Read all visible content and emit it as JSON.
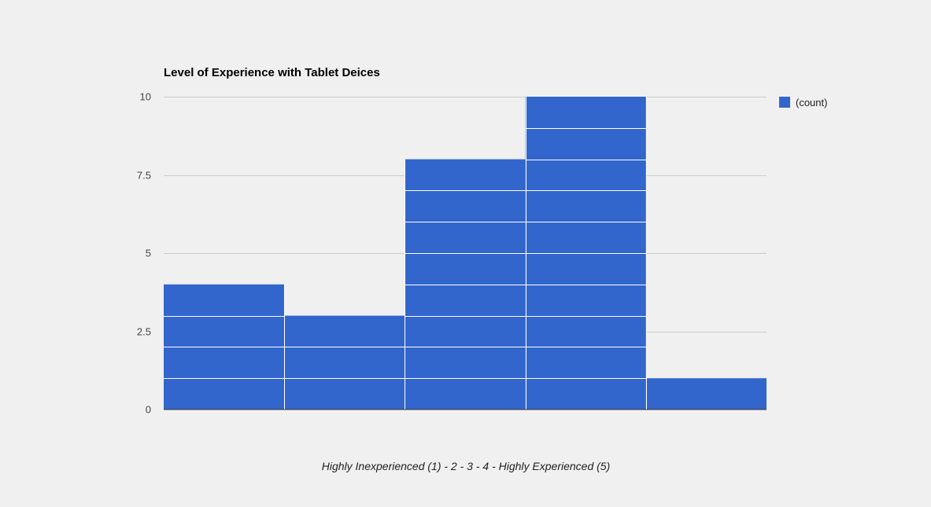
{
  "chart_data": {
    "type": "bar",
    "title": "Level of Experience with Tablet Deices",
    "xlabel": "Highly Inexperienced (1) - 2 - 3 - 4 - Highly Experienced (5)",
    "ylabel": "",
    "categories": [
      "1",
      "2",
      "3",
      "4",
      "5"
    ],
    "series": [
      {
        "name": "(count)",
        "values": [
          4,
          3,
          8,
          10,
          1
        ],
        "color": "#3366cc"
      }
    ],
    "ylim": [
      0,
      10
    ],
    "yticks": [
      {
        "value": 0,
        "label": "0"
      },
      {
        "value": 2.5,
        "label": "2.5"
      },
      {
        "value": 5,
        "label": "5"
      },
      {
        "value": 7.5,
        "label": "7.5"
      },
      {
        "value": 10,
        "label": "10"
      }
    ],
    "grid": true,
    "legend": "right",
    "stacked_units": true
  }
}
